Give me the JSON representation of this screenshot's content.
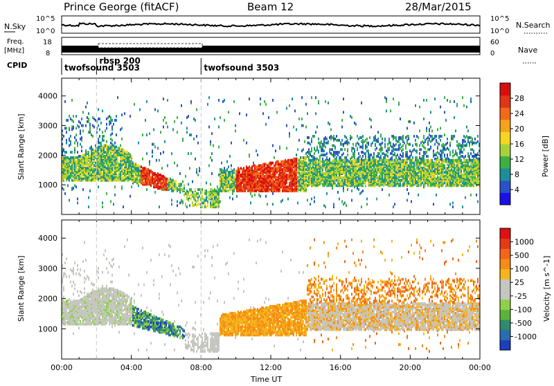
{
  "header": {
    "station": "Prince George (fitACF)",
    "beam": "Beam 12",
    "date": "28/Mar/2015"
  },
  "strip": {
    "nsky_label": "N.Sky",
    "nsearch_label": "N.Search",
    "nsky_ticks": [
      "10^5",
      "10^0"
    ],
    "nsearch_ticks": [
      "10^5",
      "10^0"
    ],
    "freq_label_1": "Freq.",
    "freq_label_2": "[MHz]",
    "freq_ticks": [
      "18",
      "8"
    ],
    "nave_label": "Nave",
    "nave_ticks": [
      "60",
      "0"
    ],
    "cpid_label": "CPID"
  },
  "cpid": [
    {
      "label": "twofsound 3503",
      "start_hours": 0
    },
    {
      "label": "rbsp 200",
      "start_hours": 2
    },
    {
      "label": "twofsound 3503",
      "start_hours": 8
    }
  ],
  "chart_data": [
    {
      "type": "heatmap",
      "panel": "power",
      "x_range_hours": [
        0,
        24
      ],
      "ylabel": "Slant Range [km]",
      "ylim": [
        0,
        4600
      ],
      "yticks": [
        1000,
        2000,
        3000,
        4000
      ],
      "colorbar": {
        "label": "Power [dB]",
        "ticks": [
          4,
          8,
          12,
          16,
          20,
          24,
          28
        ],
        "colors": [
          "#1a10e8",
          "#2a52c8",
          "#1c8e9a",
          "#3cb045",
          "#a8d23a",
          "#f5d623",
          "#f5a21c",
          "#f26a17",
          "#e23418",
          "#d80f0f"
        ]
      }
    },
    {
      "type": "heatmap",
      "panel": "velocity",
      "x_range_hours": [
        0,
        24
      ],
      "ylabel": "Slant Range [km]",
      "ylim": [
        0,
        4600
      ],
      "yticks": [
        1000,
        2000,
        3000,
        4000
      ],
      "xticks": [
        "00:00",
        "04:00",
        "08:00",
        "12:00",
        "16:00",
        "20:00",
        "00:00"
      ],
      "xlabel": "Time UT",
      "colorbar": {
        "label": "Velocity [m s^-1]",
        "ticks": [
          1000,
          500,
          100,
          25,
          -25,
          -100,
          -500,
          -1000
        ],
        "colors": [
          "#1b3fbf",
          "#2a6cb0",
          "#2f8a6e",
          "#5db33a",
          "#8fd14a",
          "#c6c6c0",
          "#c6c6c0",
          "#f5b51c",
          "#f58c16",
          "#f2661a",
          "#e63a17",
          "#e01010"
        ]
      }
    }
  ]
}
